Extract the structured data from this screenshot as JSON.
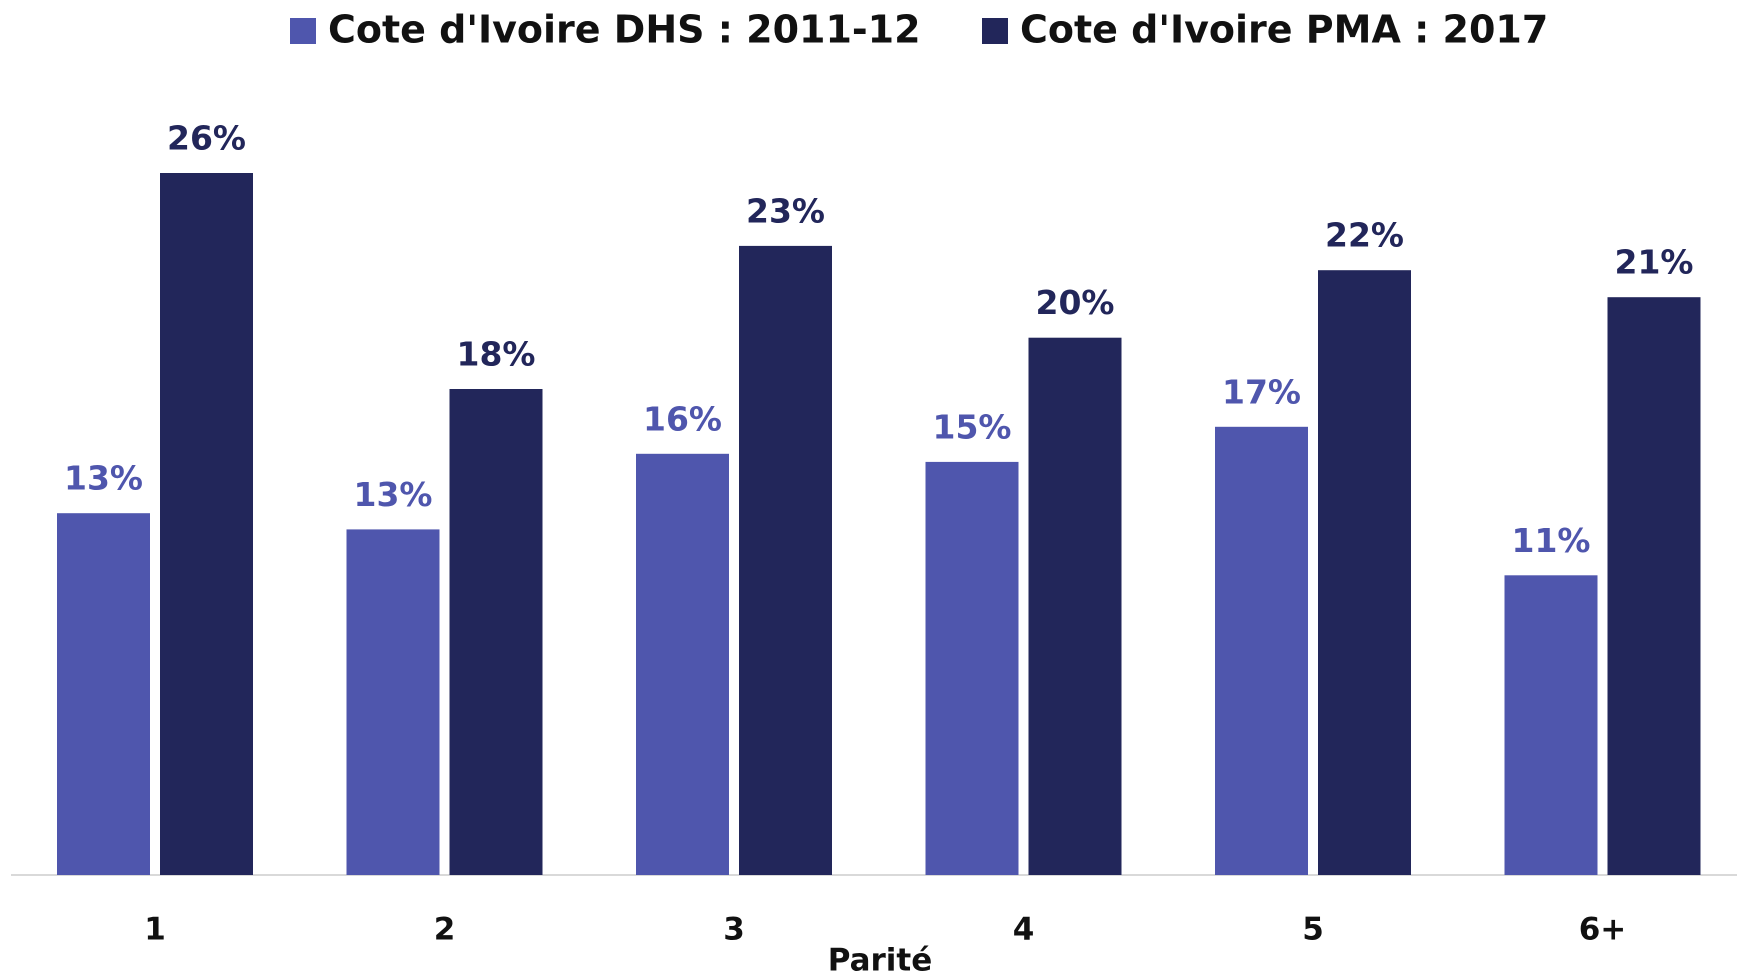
{
  "chart_data": {
    "type": "bar",
    "x_label": "Parité",
    "categories": [
      "1",
      "2",
      "3",
      "4",
      "5",
      "6+"
    ],
    "series": [
      {
        "name": "Cote d'Ivoire DHS : 2011-12",
        "color": "#4f56ad",
        "values": [
          13.4,
          12.8,
          15.6,
          15.3,
          16.6,
          11.1
        ],
        "value_labels": [
          "13%",
          "13%",
          "16%",
          "15%",
          "17%",
          "11%"
        ]
      },
      {
        "name": "Cote d'Ivoire PMA : 2017",
        "color": "#22265a",
        "values": [
          26.0,
          18.0,
          23.3,
          19.9,
          22.4,
          21.4
        ],
        "value_labels": [
          "26%",
          "18%",
          "23%",
          "20%",
          "22%",
          "21%"
        ]
      }
    ],
    "ylim": [
      0,
      28
    ]
  }
}
